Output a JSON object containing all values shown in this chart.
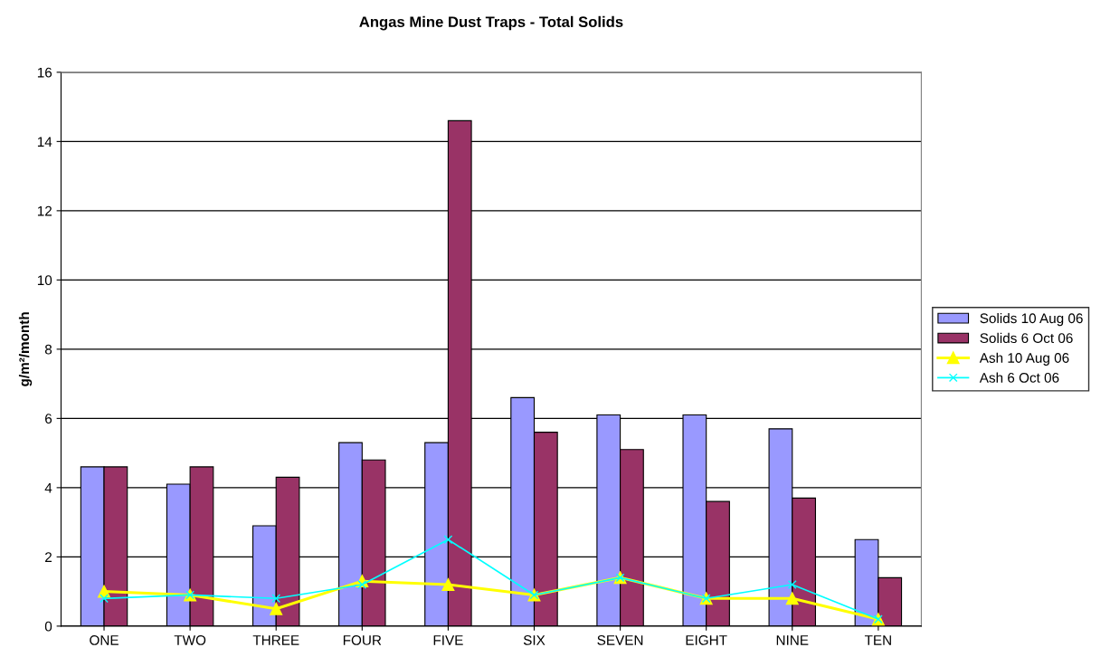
{
  "chart_data": {
    "type": "bar",
    "title": "Angas Mine Dust Traps - Total Solids",
    "ylabel": "g/m²/month",
    "categories": [
      "ONE",
      "TWO",
      "THREE",
      "FOUR",
      "FIVE",
      "SIX",
      "SEVEN",
      "EIGHT",
      "NINE",
      "TEN"
    ],
    "series": [
      {
        "name": "Solids 10 Aug 06",
        "color": "#9999ff",
        "values": [
          4.6,
          4.1,
          2.9,
          5.3,
          5.3,
          6.6,
          6.1,
          6.1,
          5.7,
          2.5
        ]
      },
      {
        "name": "Solids 6 Oct 06",
        "color": "#993366",
        "values": [
          4.6,
          4.6,
          4.3,
          4.8,
          14.6,
          5.6,
          5.1,
          3.6,
          3.7,
          1.4
        ]
      },
      {
        "name": "Ash 10 Aug 06",
        "type": "line",
        "marker": "triangle",
        "color": "#ffff00",
        "values": [
          1.0,
          0.9,
          0.5,
          1.3,
          1.2,
          0.9,
          1.4,
          0.8,
          0.8,
          0.2
        ]
      },
      {
        "name": "Ash 6 Oct 06",
        "type": "line",
        "marker": "cross",
        "color": "#00ffff",
        "values": [
          0.8,
          0.9,
          0.8,
          1.2,
          2.5,
          0.9,
          1.4,
          0.8,
          1.2,
          0.2
        ]
      }
    ],
    "ylim": [
      0,
      16
    ],
    "yticks": [
      0,
      2,
      4,
      6,
      8,
      10,
      12,
      14,
      16
    ],
    "grid": "y",
    "legend": "right"
  }
}
